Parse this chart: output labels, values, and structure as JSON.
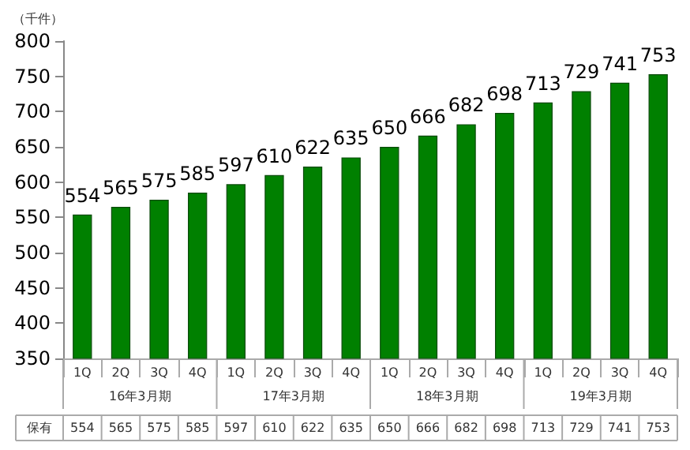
{
  "chart_data": {
    "type": "bar",
    "ylabel": "（千件）",
    "categories": [
      "1Q",
      "2Q",
      "3Q",
      "4Q",
      "1Q",
      "2Q",
      "3Q",
      "4Q",
      "1Q",
      "2Q",
      "3Q",
      "4Q",
      "1Q",
      "2Q",
      "3Q",
      "4Q"
    ],
    "series": [
      {
        "name": "保有",
        "color": "#008000",
        "values": [
          554,
          565,
          575,
          585,
          597,
          610,
          622,
          635,
          650,
          666,
          682,
          698,
          713,
          729,
          741,
          753
        ]
      }
    ],
    "annotations": [
      "16年3月期",
      "17年3月期",
      "18年3月期",
      "19年3月期",
      "554",
      "565",
      "575",
      "585",
      "597",
      "610",
      "622",
      "635",
      "650",
      "666",
      "682",
      "698",
      "713",
      "729",
      "741",
      "753"
    ],
    "ylim": [
      350,
      800
    ],
    "yticks": [
      350,
      400,
      450,
      500,
      550,
      600,
      650,
      700,
      750,
      800
    ],
    "data_labels": true,
    "grid": false,
    "legend": false
  }
}
